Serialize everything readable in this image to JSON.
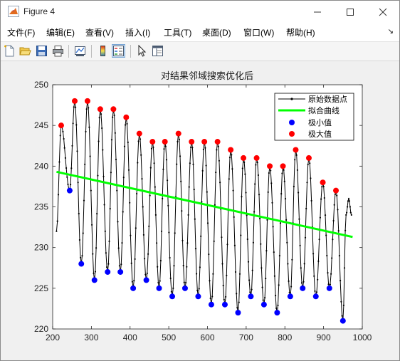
{
  "window": {
    "title": "Figure 4",
    "icon": "matlab-icon"
  },
  "menu": [
    {
      "label": "文件(F)"
    },
    {
      "label": "编辑(E)"
    },
    {
      "label": "查看(V)"
    },
    {
      "label": "插入(I)"
    },
    {
      "label": "工具(T)"
    },
    {
      "label": "桌面(D)"
    },
    {
      "label": "窗口(W)"
    },
    {
      "label": "帮助(H)"
    }
  ],
  "toolbar": {
    "buttons": [
      "new-figure-icon",
      "open-folder-icon",
      "save-icon",
      "print-icon",
      "link-plot-icon",
      "colorbar-icon",
      "legend-icon",
      "pointer-icon",
      "property-editor-icon"
    ]
  },
  "chart_data": {
    "type": "line",
    "title": "对结果邻域搜索优化后",
    "xlim": [
      200,
      1000
    ],
    "ylim": [
      220,
      250
    ],
    "xticks": [
      200,
      300,
      400,
      500,
      600,
      700,
      800,
      900,
      1000
    ],
    "yticks": [
      220,
      225,
      230,
      235,
      240,
      245,
      250
    ],
    "grid": false,
    "legend_position": "top-right",
    "legend": [
      "原始数据点",
      "拟合曲线",
      "极小值",
      "极大值"
    ],
    "colors": {
      "original": "#000000",
      "fit": "#00ff00",
      "min": "#0000ff",
      "max": "#ff0000"
    },
    "fit_line": {
      "x": [
        210,
        975
      ],
      "y": [
        239.3,
        231.3
      ]
    },
    "maxima": {
      "x": [
        222,
        257,
        290,
        323,
        357,
        390,
        424,
        458,
        490,
        525,
        559,
        592,
        626,
        660,
        693,
        727,
        761,
        795,
        828,
        862,
        898,
        932
      ],
      "y": [
        245,
        248,
        248,
        247,
        247,
        246,
        244,
        243,
        243,
        244,
        243,
        243,
        243,
        242,
        241,
        241,
        240,
        240,
        242,
        241,
        238,
        237
      ]
    },
    "minima": {
      "x": [
        244,
        274,
        308,
        342,
        375,
        408,
        442,
        475,
        509,
        542,
        576,
        610,
        645,
        679,
        712,
        746,
        780,
        814,
        846,
        880,
        915,
        950
      ],
      "y": [
        237,
        228,
        226,
        227,
        227,
        225,
        226,
        225,
        224,
        225,
        224,
        223,
        223,
        222,
        224,
        223,
        222,
        224,
        225,
        224,
        225,
        221
      ]
    },
    "series_end": {
      "x": [
        950,
        958,
        965,
        972
      ],
      "y": [
        221,
        234,
        236,
        234
      ]
    }
  }
}
